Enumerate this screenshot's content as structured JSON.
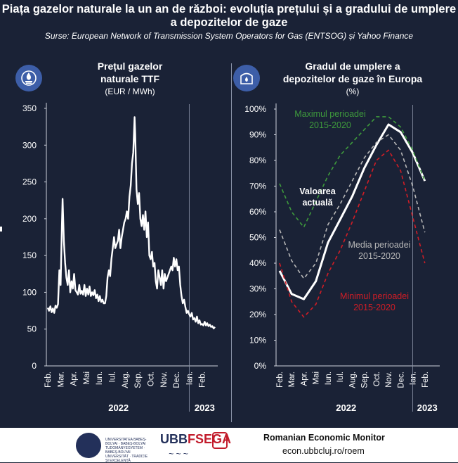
{
  "title": "Piața gazelor naturale la un an de război: evoluția prețului și a gradului de umplere a depozitelor de gaze",
  "source": "Surse: European Network of Transmission System Operators for Gas (ENTSOG) și Yahoo Finance",
  "left_panel": {
    "title": "Prețul gazelor naturale TTF",
    "units": "(EUR / MWh)"
  },
  "right_panel": {
    "title": "Gradul de umplere a depozitelor de gaze în Europa",
    "units": "(%)"
  },
  "icons": {
    "left": "gas-flame-emblem-icon",
    "right": "gas-storage-tank-icon"
  },
  "footer": {
    "university_text": "UNIVERSITATEA BABEȘ-BOLYAI · BABEȘ-BOLYAI TUDOMÁNYEGYETEM · BABEȘ-BOLYAI UNIVERSITÄT · TRADIȚIE ȘI EXCELENȚĂ",
    "faculty_a": "UBB",
    "faculty_b": "FSEGA",
    "monitor": "Romanian Economic Monitor",
    "website": "econ.ubbcluj.ro/roem"
  },
  "chart_data": [
    {
      "type": "line",
      "title": "Prețul gazelor naturale TTF",
      "ylabel": "(EUR / MWh)",
      "ylim": [
        0,
        350
      ],
      "yticks": [
        0,
        50,
        100,
        150,
        200,
        250,
        300,
        350
      ],
      "x_range": [
        0,
        13
      ],
      "grid": false,
      "xtick_labels": [
        "Feb.",
        "Mar.",
        "Apr.",
        "Mai",
        "Iun.",
        "Iul.",
        "Aug.",
        "Sep.",
        "Oct.",
        "Nov.",
        "Dec.",
        "Ian.",
        "Feb."
      ],
      "year_labels": [
        {
          "label": "2022",
          "x": 5.5
        },
        {
          "label": "2023",
          "x": 12.2
        }
      ],
      "year_divider_x": 11.0,
      "series": [
        {
          "color": "#ffffff",
          "points": [
            [
              0.0,
              79
            ],
            [
              0.1,
              75
            ],
            [
              0.2,
              81
            ],
            [
              0.3,
              73
            ],
            [
              0.4,
              78
            ],
            [
              0.5,
              72
            ],
            [
              0.6,
              82
            ],
            [
              0.7,
              79
            ],
            [
              0.8,
              84
            ],
            [
              0.9,
              130
            ],
            [
              1.0,
              110
            ],
            [
              1.1,
              190
            ],
            [
              1.15,
              227
            ],
            [
              1.25,
              170
            ],
            [
              1.35,
              140
            ],
            [
              1.45,
              120
            ],
            [
              1.55,
              110
            ],
            [
              1.65,
              130
            ],
            [
              1.75,
              100
            ],
            [
              1.85,
              115
            ],
            [
              1.95,
              105
            ],
            [
              2.05,
              125
            ],
            [
              2.15,
              103
            ],
            [
              2.25,
              100
            ],
            [
              2.35,
              97
            ],
            [
              2.45,
              110
            ],
            [
              2.55,
              98
            ],
            [
              2.65,
              102
            ],
            [
              2.75,
              97
            ],
            [
              2.85,
              110
            ],
            [
              2.95,
              95
            ],
            [
              3.05,
              105
            ],
            [
              3.15,
              97
            ],
            [
              3.25,
              108
            ],
            [
              3.35,
              95
            ],
            [
              3.45,
              100
            ],
            [
              3.55,
              96
            ],
            [
              3.65,
              103
            ],
            [
              3.75,
              92
            ],
            [
              3.85,
              97
            ],
            [
              3.95,
              88
            ],
            [
              4.05,
              95
            ],
            [
              4.15,
              87
            ],
            [
              4.25,
              90
            ],
            [
              4.35,
              85
            ],
            [
              4.45,
              85
            ],
            [
              4.55,
              95
            ],
            [
              4.65,
              120
            ],
            [
              4.75,
              130
            ],
            [
              4.85,
              122
            ],
            [
              4.95,
              145
            ],
            [
              5.05,
              160
            ],
            [
              5.15,
              175
            ],
            [
              5.25,
              160
            ],
            [
              5.35,
              165
            ],
            [
              5.45,
              170
            ],
            [
              5.55,
              185
            ],
            [
              5.65,
              160
            ],
            [
              5.75,
              175
            ],
            [
              5.85,
              185
            ],
            [
              5.95,
              195
            ],
            [
              6.05,
              200
            ],
            [
              6.15,
              210
            ],
            [
              6.25,
              200
            ],
            [
              6.35,
              230
            ],
            [
              6.45,
              245
            ],
            [
              6.55,
              275
            ],
            [
              6.65,
              290
            ],
            [
              6.75,
              338
            ],
            [
              6.8,
              315
            ],
            [
              6.9,
              240
            ],
            [
              7.0,
              220
            ],
            [
              7.1,
              235
            ],
            [
              7.2,
              200
            ],
            [
              7.3,
              190
            ],
            [
              7.4,
              205
            ],
            [
              7.5,
              185
            ],
            [
              7.6,
              210
            ],
            [
              7.7,
              175
            ],
            [
              7.8,
              195
            ],
            [
              7.9,
              150
            ],
            [
              8.0,
              145
            ],
            [
              8.1,
              155
            ],
            [
              8.2,
              135
            ],
            [
              8.3,
              140
            ],
            [
              8.4,
              115
            ],
            [
              8.5,
              105
            ],
            [
              8.6,
              130
            ],
            [
              8.7,
              120
            ],
            [
              8.8,
              110
            ],
            [
              8.9,
              130
            ],
            [
              9.0,
              105
            ],
            [
              9.1,
              125
            ],
            [
              9.2,
              115
            ],
            [
              9.3,
              120
            ],
            [
              9.4,
              125
            ],
            [
              9.5,
              130
            ],
            [
              9.6,
              135
            ],
            [
              9.7,
              130
            ],
            [
              9.8,
              147
            ],
            [
              9.9,
              135
            ],
            [
              10.0,
              145
            ],
            [
              10.1,
              130
            ],
            [
              10.2,
              135
            ],
            [
              10.3,
              110
            ],
            [
              10.4,
              95
            ],
            [
              10.5,
              85
            ],
            [
              10.6,
              90
            ],
            [
              10.7,
              80
            ],
            [
              10.8,
              72
            ],
            [
              10.9,
              75
            ],
            [
              11.0,
              70
            ],
            [
              11.1,
              67
            ],
            [
              11.2,
              72
            ],
            [
              11.3,
              63
            ],
            [
              11.4,
              65
            ],
            [
              11.5,
              60
            ],
            [
              11.6,
              67
            ],
            [
              11.7,
              58
            ],
            [
              11.8,
              62
            ],
            [
              11.9,
              56
            ],
            [
              12.0,
              57
            ],
            [
              12.1,
              55
            ],
            [
              12.2,
              60
            ],
            [
              12.3,
              55
            ],
            [
              12.4,
              58
            ],
            [
              12.5,
              54
            ],
            [
              12.6,
              56
            ],
            [
              12.7,
              53
            ],
            [
              12.8,
              54
            ],
            [
              12.9,
              51
            ],
            [
              13.0,
              53
            ]
          ]
        }
      ]
    },
    {
      "type": "line",
      "title": "Gradul de umplere a depozitelor de gaze în Europa",
      "ylabel": "(%)",
      "ylim": [
        0,
        100
      ],
      "yticks": [
        0,
        10,
        20,
        30,
        40,
        50,
        60,
        70,
        80,
        90,
        100
      ],
      "ytick_suffix": "%",
      "x_range": [
        0,
        13
      ],
      "grid": false,
      "xtick_labels": [
        "Feb.",
        "Mar.",
        "Apr.",
        "Mai",
        "Iun.",
        "Iul.",
        "Aug.",
        "Sep.",
        "Oct.",
        "Nov.",
        "Dec.",
        "Ian.",
        "Feb."
      ],
      "year_labels": [
        {
          "label": "2022",
          "x": 5.5
        },
        {
          "label": "2023",
          "x": 12.2
        }
      ],
      "year_divider_x": 11.0,
      "series": [
        {
          "name": "Valoarea actuală",
          "color": "#ffffff",
          "dash": "",
          "width": 3,
          "values": [
            37,
            28,
            26,
            33,
            48,
            57,
            66,
            77,
            86,
            94,
            91,
            83,
            72
          ]
        },
        {
          "name": "Maximul perioadei 2015-2020",
          "color": "#3e9a3c",
          "dash": "5,4",
          "width": 1.6,
          "values": [
            71,
            60,
            54,
            64,
            74,
            82,
            87,
            92,
            97,
            97,
            93,
            84,
            72
          ]
        },
        {
          "name": "Media perioadei 2015-2020",
          "color": "#b8b8b8",
          "dash": "5,4",
          "width": 1.6,
          "values": [
            53,
            41,
            34,
            40,
            55,
            63,
            72,
            81,
            87,
            90,
            84,
            70,
            52
          ]
        },
        {
          "name": "Minimul perioadei 2015-2020",
          "color": "#d01d26",
          "dash": "5,4",
          "width": 1.6,
          "values": [
            40,
            25,
            19,
            24,
            36,
            45,
            56,
            68,
            80,
            84,
            76,
            58,
            40
          ]
        }
      ],
      "annotations": [
        {
          "series": 1,
          "lines": [
            "Maximul perioadei",
            "2015-2020"
          ]
        },
        {
          "series": 0,
          "lines": [
            "Valoarea",
            "actuală"
          ]
        },
        {
          "series": 2,
          "lines": [
            "Media perioadei",
            "2015-2020"
          ]
        },
        {
          "series": 3,
          "lines": [
            "Minimul perioadei",
            "2015-2020"
          ]
        }
      ]
    }
  ]
}
